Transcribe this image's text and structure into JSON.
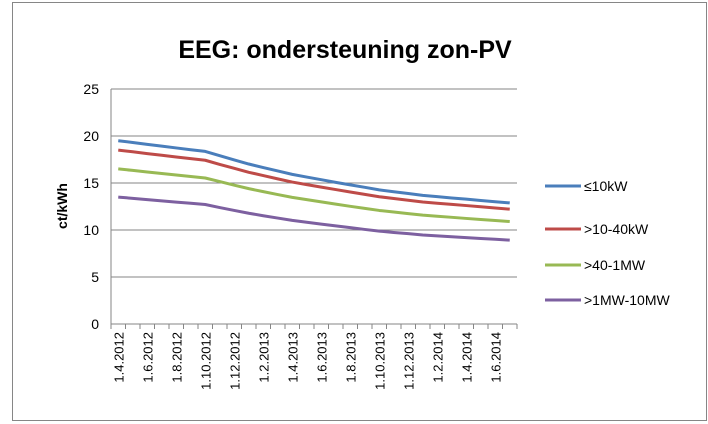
{
  "chart_data": {
    "type": "line",
    "title": "EEG: ondersteuning zon-PV",
    "y_label": "ct/kWh",
    "categories": [
      "1.4.2012",
      null,
      "1.6.2012",
      null,
      "1.8.2012",
      null,
      "1.10.2012",
      null,
      "1.12.2012",
      null,
      "1.2.2013",
      null,
      "1.4.2013",
      null,
      "1.6.2013",
      null,
      "1.8.2013",
      null,
      "1.10.2013",
      null,
      "1.12.2013",
      null,
      "1.2.2014",
      null,
      "1.4.2014",
      null,
      "1.6.2014",
      null
    ],
    "series": [
      {
        "name": "≤10kW",
        "color": "#4a7ebb",
        "values": [
          19.5,
          19.31,
          19.11,
          18.92,
          18.73,
          18.54,
          18.36,
          17.9,
          17.45,
          17.02,
          16.64,
          16.28,
          15.92,
          15.63,
          15.35,
          15.07,
          14.8,
          14.54,
          14.27,
          14.07,
          13.88,
          13.68,
          13.55,
          13.41,
          13.28,
          13.14,
          13.01,
          12.88
        ]
      },
      {
        "name": ">10-40kW",
        "color": "#be4b48",
        "values": [
          18.5,
          18.32,
          18.13,
          17.95,
          17.77,
          17.59,
          17.42,
          16.98,
          16.56,
          16.14,
          15.79,
          15.44,
          15.1,
          14.83,
          14.56,
          14.3,
          14.04,
          13.79,
          13.54,
          13.35,
          13.17,
          12.98,
          12.85,
          12.72,
          12.6,
          12.47,
          12.34,
          12.22
        ]
      },
      {
        "name": ">40-1MW",
        "color": "#98b954",
        "values": [
          16.5,
          16.34,
          16.17,
          16.01,
          15.85,
          15.69,
          15.53,
          15.15,
          14.77,
          14.4,
          14.08,
          13.77,
          13.47,
          13.23,
          12.99,
          12.75,
          12.52,
          12.3,
          12.08,
          11.91,
          11.74,
          11.58,
          11.46,
          11.35,
          11.23,
          11.12,
          11.01,
          10.9
        ]
      },
      {
        "name": ">1MW-10MW",
        "color": "#7d60a0",
        "values": [
          13.5,
          13.37,
          13.23,
          13.1,
          12.97,
          12.84,
          12.71,
          12.39,
          12.08,
          11.78,
          11.52,
          11.27,
          11.02,
          10.82,
          10.63,
          10.44,
          10.25,
          10.06,
          9.88,
          9.74,
          9.61,
          9.47,
          9.38,
          9.28,
          9.19,
          9.1,
          9.01,
          8.92
        ]
      }
    ],
    "ylim": [
      0,
      25
    ],
    "yticks": [
      0,
      5,
      10,
      15,
      20,
      25
    ],
    "grid": true,
    "legend": "right"
  }
}
